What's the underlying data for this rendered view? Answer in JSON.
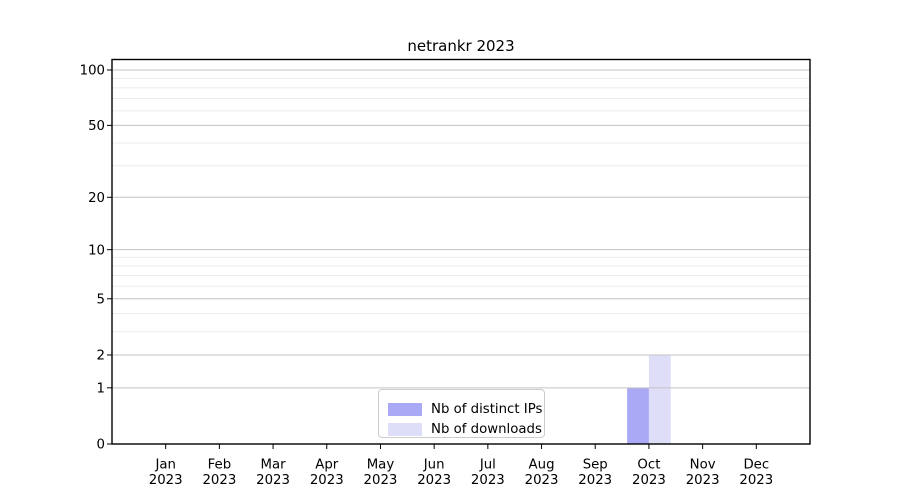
{
  "colors": {
    "background": "#ffffff",
    "axis": "#000000",
    "text": "#000000",
    "grid_major": "#c3c3c3",
    "grid_minor": "#ebebeb",
    "legend_border": "#cccccc",
    "distinct_ips": "#a9a9f5",
    "downloads": "#dedef8"
  },
  "chart_data": {
    "type": "bar",
    "title": "netrankr 2023",
    "categories": [
      "Jan",
      "Feb",
      "Mar",
      "Apr",
      "May",
      "Jun",
      "Jul",
      "Aug",
      "Sep",
      "Oct",
      "Nov",
      "Dec"
    ],
    "category_year": "2023",
    "series": [
      {
        "name": "Nb of distinct IPs",
        "color": "#a9a9f5",
        "values": [
          0,
          0,
          0,
          0,
          0,
          0,
          0,
          0,
          0,
          1,
          0,
          0
        ]
      },
      {
        "name": "Nb of downloads",
        "color": "#dedef8",
        "values": [
          0,
          0,
          0,
          0,
          0,
          0,
          0,
          0,
          0,
          2,
          0,
          0
        ]
      }
    ],
    "xlabel": "",
    "ylabel": "",
    "y_scale": "log1p",
    "y_ticks": [
      0,
      1,
      2,
      5,
      10,
      20,
      50,
      100
    ],
    "y_minor_grid": [
      3,
      4,
      6,
      7,
      8,
      9,
      30,
      40,
      60,
      70,
      80,
      90
    ],
    "ylim": [
      0,
      115
    ],
    "grid": true,
    "legend_position": "lower center"
  }
}
